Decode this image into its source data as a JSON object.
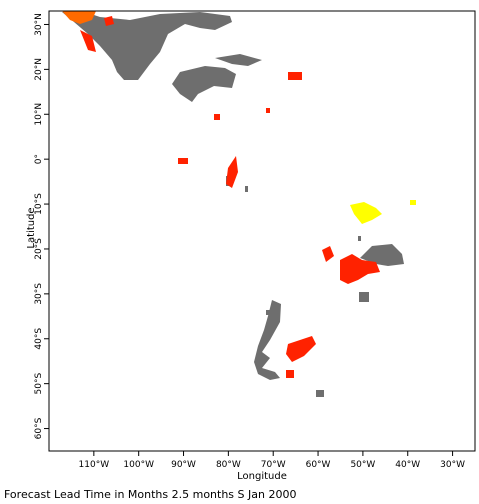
{
  "map": {
    "xlabel": "Longitude",
    "ylabel": "Latitude",
    "caption": "Forecast Lead Time in Months 2.5 months S Jan 2000",
    "lon_range": [
      -120,
      -25
    ],
    "lat_range": [
      -65,
      33
    ],
    "lon_ticks": [
      {
        "value": -110,
        "label": "110°W"
      },
      {
        "value": -100,
        "label": "100°W"
      },
      {
        "value": -90,
        "label": "90°W"
      },
      {
        "value": -80,
        "label": "80°W"
      },
      {
        "value": -70,
        "label": "70°W"
      },
      {
        "value": -60,
        "label": "60°W"
      },
      {
        "value": -50,
        "label": "50°W"
      },
      {
        "value": -40,
        "label": "40°W"
      },
      {
        "value": -30,
        "label": "30°W"
      }
    ],
    "lat_ticks": [
      {
        "value": 30,
        "label": "30°N"
      },
      {
        "value": 20,
        "label": "20°N"
      },
      {
        "value": 10,
        "label": "10°N"
      },
      {
        "value": 0,
        "label": "0°"
      },
      {
        "value": -10,
        "label": "10°S"
      },
      {
        "value": -20,
        "label": "20°S"
      },
      {
        "value": -30,
        "label": "30°S"
      },
      {
        "value": -40,
        "label": "40°S"
      },
      {
        "value": -50,
        "label": "50°S"
      },
      {
        "value": -60,
        "label": "60°S"
      }
    ],
    "colors": {
      "gray": "#6e6e6e",
      "red": "#ff2200",
      "orange": "#ff6a00",
      "yellow": "#ffff00"
    }
  }
}
